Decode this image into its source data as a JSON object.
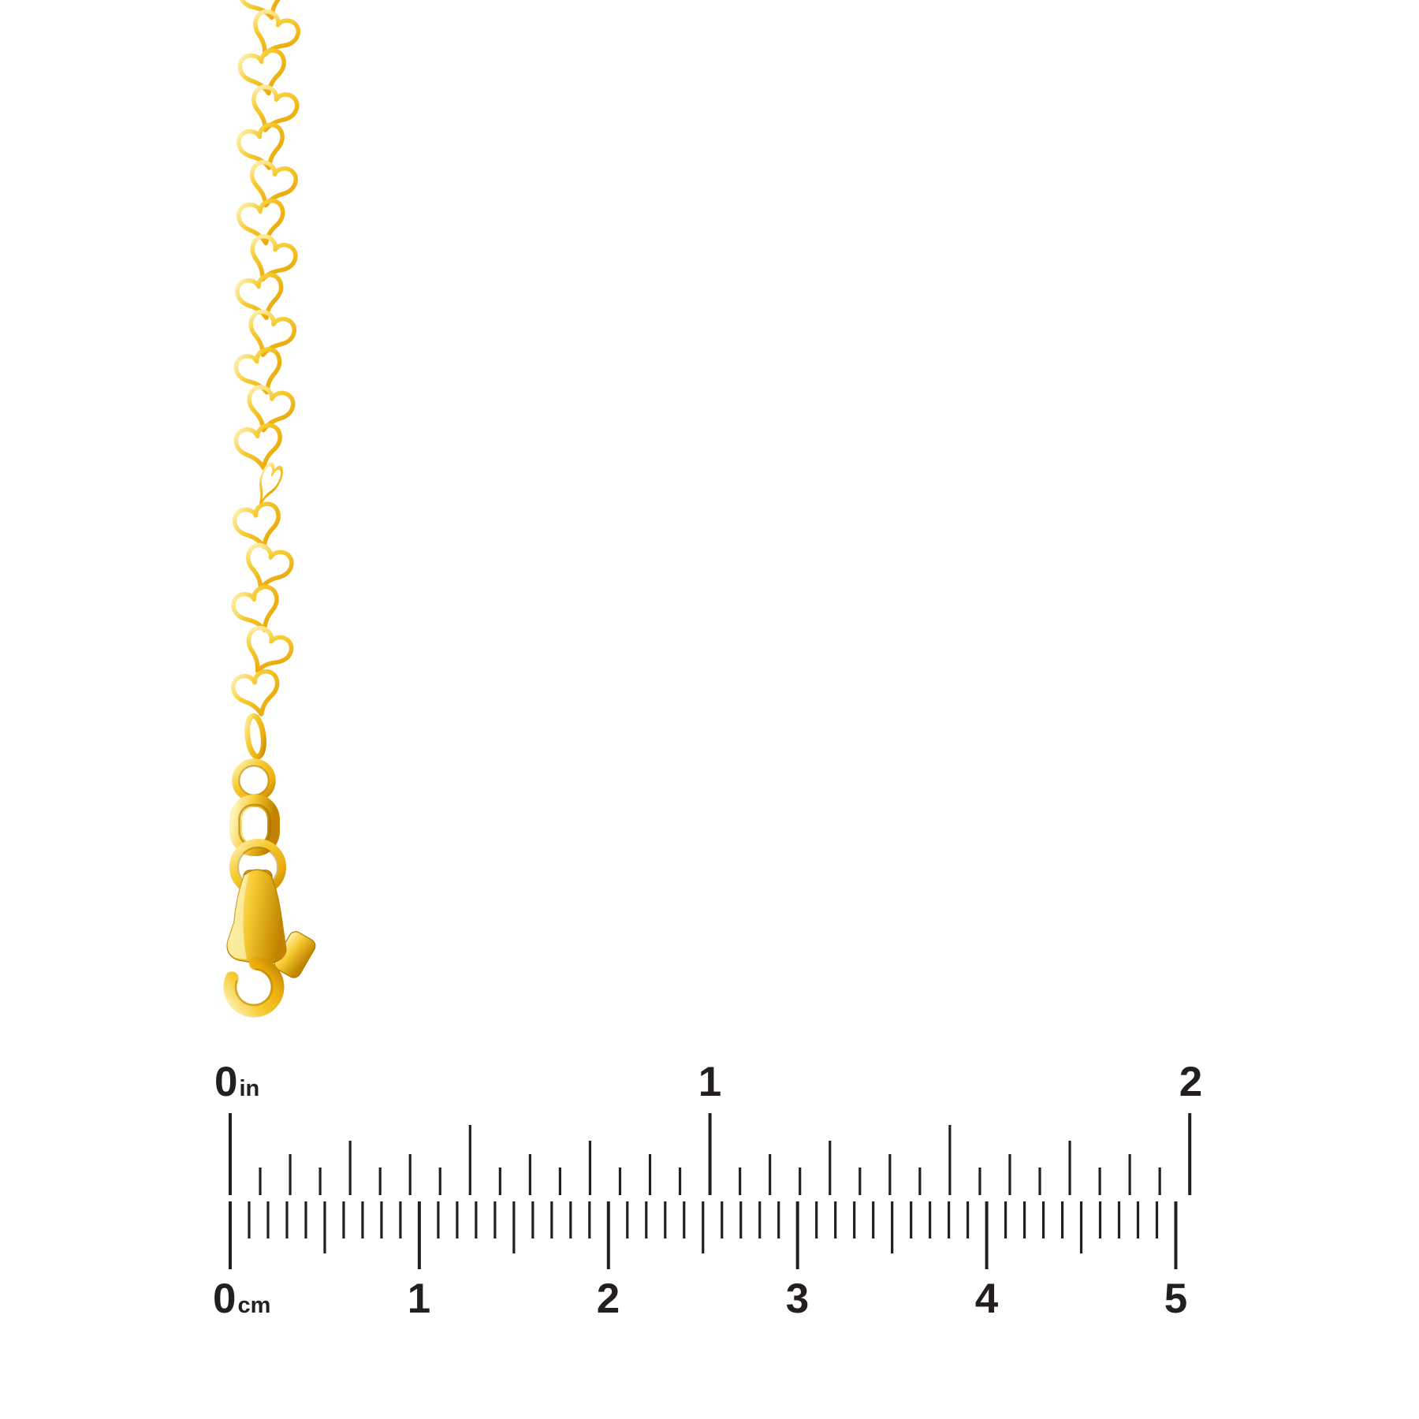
{
  "canvas": {
    "background": "#FFFFFF"
  },
  "product": {
    "kind": "yellow-gold-heart-link-chain-with-lobster-clasp",
    "heart_link_count": 19,
    "gold_light": "#FFF3B8",
    "gold_mid": "#F6CB32",
    "gold_base": "#EBAC0D",
    "gold_dark": "#C28400",
    "gold_deep": "#9A6B00"
  },
  "ruler": {
    "tick_color": "#231F20",
    "label_color": "#231F20",
    "inch": {
      "zero": "0",
      "unit": "in",
      "marks": [
        "1",
        "2"
      ],
      "units": 2,
      "ticks_per_unit": 16
    },
    "cm": {
      "zero": "0",
      "unit": "cm",
      "marks": [
        "1",
        "2",
        "3",
        "4",
        "5"
      ],
      "units": 5,
      "ticks_per_unit": 10
    }
  }
}
